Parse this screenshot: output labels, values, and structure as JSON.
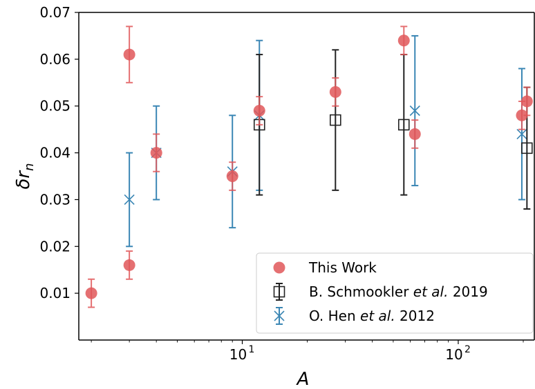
{
  "chart_data": {
    "type": "scatter",
    "title": "",
    "xlabel": "A",
    "ylabel": "δr_n",
    "xscale": "log",
    "xlim": [
      1.75,
      225
    ],
    "ylim": [
      0.0,
      0.07
    ],
    "y_ticks": [
      {
        "value": 0.01,
        "label": "0.01"
      },
      {
        "value": 0.02,
        "label": "0.02"
      },
      {
        "value": 0.03,
        "label": "0.03"
      },
      {
        "value": 0.04,
        "label": "0.04"
      },
      {
        "value": 0.05,
        "label": "0.05"
      },
      {
        "value": 0.06,
        "label": "0.06"
      },
      {
        "value": 0.07,
        "label": "0.07"
      }
    ],
    "x_ticks": [
      {
        "value": 10,
        "base": "10",
        "exp": "1"
      },
      {
        "value": 100,
        "base": "10",
        "exp": "2"
      }
    ],
    "legend_position": "lower-right",
    "series": [
      {
        "name": "This Work",
        "marker": "circle",
        "color": "#e15759",
        "points": [
          {
            "x": 2,
            "y": 0.01,
            "ylo": 0.007,
            "yhi": 0.013
          },
          {
            "x": 3,
            "y": 0.061,
            "ylo": 0.055,
            "yhi": 0.067
          },
          {
            "x": 3,
            "y": 0.016,
            "ylo": 0.013,
            "yhi": 0.019
          },
          {
            "x": 4,
            "y": 0.04,
            "ylo": 0.036,
            "yhi": 0.044
          },
          {
            "x": 9,
            "y": 0.035,
            "ylo": 0.032,
            "yhi": 0.038
          },
          {
            "x": 12,
            "y": 0.049,
            "ylo": 0.046,
            "yhi": 0.052
          },
          {
            "x": 27,
            "y": 0.053,
            "ylo": 0.05,
            "yhi": 0.056
          },
          {
            "x": 56,
            "y": 0.064,
            "ylo": 0.061,
            "yhi": 0.067
          },
          {
            "x": 63,
            "y": 0.044,
            "ylo": 0.041,
            "yhi": 0.047
          },
          {
            "x": 197,
            "y": 0.048,
            "ylo": 0.045,
            "yhi": 0.051
          },
          {
            "x": 208,
            "y": 0.051,
            "ylo": 0.048,
            "yhi": 0.054
          }
        ]
      },
      {
        "name": "B. Schmookler",
        "name_italic": "et al.",
        "name_year": "2019",
        "marker": "square",
        "color": "#222222",
        "points": [
          {
            "x": 12,
            "y": 0.046,
            "ylo": 0.031,
            "yhi": 0.061
          },
          {
            "x": 27,
            "y": 0.047,
            "ylo": 0.032,
            "yhi": 0.062
          },
          {
            "x": 56,
            "y": 0.046,
            "ylo": 0.031,
            "yhi": 0.061
          },
          {
            "x": 208,
            "y": 0.041,
            "ylo": 0.028,
            "yhi": 0.054
          }
        ]
      },
      {
        "name": "O. Hen",
        "name_italic": "et al.",
        "name_year": "2012",
        "marker": "x",
        "color": "#3a86b4",
        "points": [
          {
            "x": 3,
            "y": 0.03,
            "ylo": 0.02,
            "yhi": 0.04
          },
          {
            "x": 4,
            "y": 0.04,
            "ylo": 0.03,
            "yhi": 0.05
          },
          {
            "x": 9,
            "y": 0.036,
            "ylo": 0.024,
            "yhi": 0.048
          },
          {
            "x": 12,
            "y": 0.048,
            "ylo": 0.032,
            "yhi": 0.064
          },
          {
            "x": 63,
            "y": 0.049,
            "ylo": 0.033,
            "yhi": 0.065
          },
          {
            "x": 197,
            "y": 0.044,
            "ylo": 0.03,
            "yhi": 0.058
          }
        ]
      }
    ]
  }
}
